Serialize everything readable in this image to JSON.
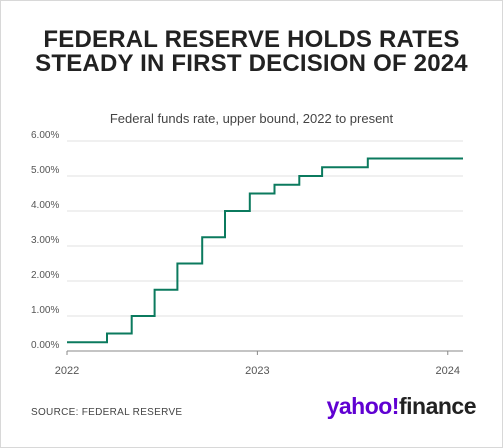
{
  "title": "FEDERAL RESERVE HOLDS RATES STEADY IN FIRST DECISION OF 2024",
  "subtitle": "Federal funds rate, upper bound, 2022 to present",
  "source": "SOURCE: FEDERAL RESERVE",
  "brand": {
    "part1": "yahoo!",
    "part2": "finance",
    "accent": "#6001d2"
  },
  "chart_data": {
    "type": "line",
    "step": true,
    "line_color": "#0b7a5e",
    "ylim": [
      0,
      6
    ],
    "yticks": [
      0,
      1,
      2,
      3,
      4,
      5,
      6
    ],
    "ytick_labels": [
      "0.00%",
      "1.00%",
      "2.00%",
      "3.00%",
      "4.00%",
      "5.00%",
      "6.00%"
    ],
    "xlim": [
      2022.0,
      2024.08
    ],
    "xticks": [
      2022,
      2023,
      2024
    ],
    "xtick_labels": [
      "2022",
      "2023",
      "2024"
    ],
    "grid": true,
    "series": [
      {
        "x": [
          2022.0,
          2022.21,
          2022.34,
          2022.46,
          2022.58,
          2022.71,
          2022.83,
          2022.96,
          2023.09,
          2023.22,
          2023.34,
          2023.58,
          2024.08
        ],
        "y": [
          0.25,
          0.5,
          1.0,
          1.75,
          2.5,
          3.25,
          4.0,
          4.5,
          4.75,
          5.0,
          5.25,
          5.5,
          5.5
        ]
      }
    ]
  }
}
